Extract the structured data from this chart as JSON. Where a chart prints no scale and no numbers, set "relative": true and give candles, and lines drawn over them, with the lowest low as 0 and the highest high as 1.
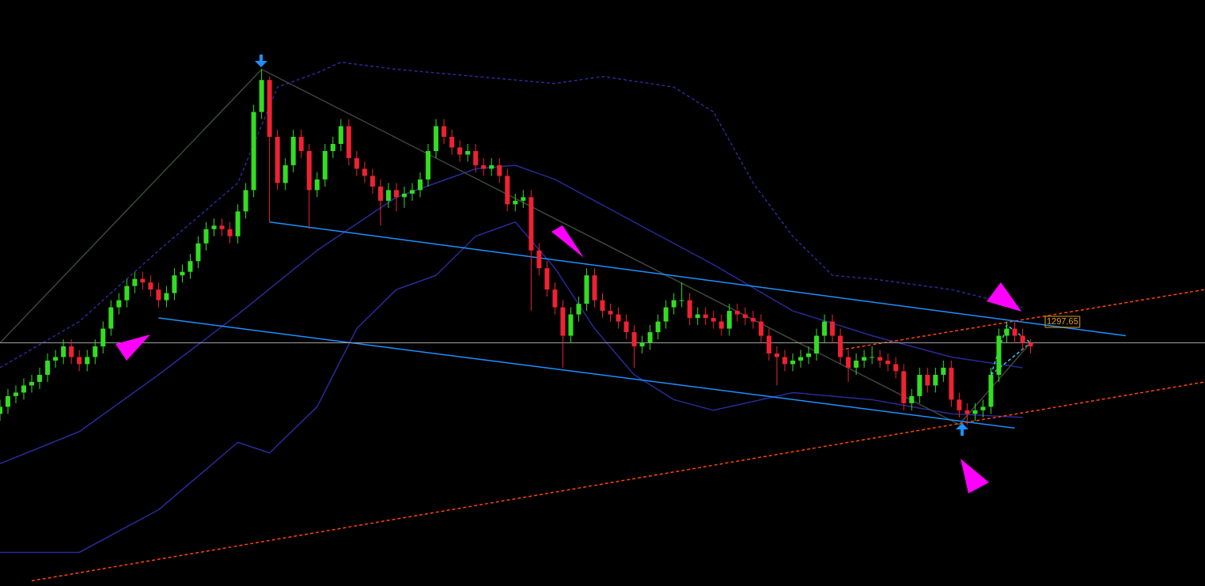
{
  "chart_data": {
    "type": "candlestick",
    "relative": true,
    "tick_labels": false,
    "legend": false,
    "categories": [
      null,
      null,
      null,
      null,
      null,
      null,
      null,
      null,
      null,
      null,
      null,
      null,
      null,
      null,
      null,
      null,
      null,
      null,
      null,
      null,
      null,
      null,
      null,
      null,
      null,
      null,
      null,
      null,
      null,
      null,
      null,
      null,
      null,
      null,
      null,
      null,
      null,
      null,
      null,
      null,
      null,
      null,
      null,
      null,
      null,
      null,
      null,
      null,
      null,
      null,
      null,
      null,
      null,
      null,
      null,
      null,
      null,
      null,
      null,
      null,
      null,
      null,
      null,
      null,
      null,
      null,
      null,
      null,
      null,
      null,
      null,
      null,
      null,
      null,
      null,
      null,
      null,
      null,
      null,
      null,
      null,
      null,
      null,
      null,
      null,
      null,
      null,
      null,
      null,
      null,
      null,
      null,
      null,
      null,
      null,
      null,
      null,
      null,
      null,
      null,
      null,
      null,
      null,
      null,
      null,
      null,
      null,
      null,
      null,
      null,
      null,
      null,
      null,
      null,
      null,
      null,
      null,
      null,
      null,
      null,
      null,
      null,
      null,
      null,
      null,
      null,
      null,
      null,
      null,
      null,
      null,
      null,
      null,
      null,
      null,
      null,
      null,
      null,
      null,
      null,
      null,
      null,
      null,
      null,
      null,
      null,
      null,
      null,
      null,
      null,
      null,
      null,
      null
    ],
    "ohlc": [
      [
        0.03,
        0.07,
        0.01,
        0.05
      ],
      [
        0.05,
        0.1,
        0.03,
        0.08
      ],
      [
        0.08,
        0.11,
        0.06,
        0.09
      ],
      [
        0.09,
        0.13,
        0.07,
        0.11
      ],
      [
        0.11,
        0.14,
        0.09,
        0.12
      ],
      [
        0.12,
        0.16,
        0.1,
        0.14
      ],
      [
        0.14,
        0.2,
        0.12,
        0.18
      ],
      [
        0.18,
        0.21,
        0.16,
        0.19
      ],
      [
        0.19,
        0.24,
        0.17,
        0.22
      ],
      [
        0.22,
        0.24,
        0.17,
        0.19
      ],
      [
        0.19,
        0.21,
        0.15,
        0.17
      ],
      [
        0.17,
        0.21,
        0.15,
        0.19
      ],
      [
        0.19,
        0.24,
        0.17,
        0.22
      ],
      [
        0.22,
        0.29,
        0.2,
        0.27
      ],
      [
        0.27,
        0.35,
        0.25,
        0.33
      ],
      [
        0.33,
        0.37,
        0.31,
        0.35
      ],
      [
        0.35,
        0.41,
        0.33,
        0.39
      ],
      [
        0.39,
        0.43,
        0.37,
        0.41
      ],
      [
        0.41,
        0.43,
        0.38,
        0.4
      ],
      [
        0.4,
        0.42,
        0.36,
        0.38
      ],
      [
        0.38,
        0.4,
        0.33,
        0.35
      ],
      [
        0.35,
        0.39,
        0.33,
        0.37
      ],
      [
        0.37,
        0.44,
        0.35,
        0.42
      ],
      [
        0.42,
        0.45,
        0.4,
        0.43
      ],
      [
        0.43,
        0.48,
        0.41,
        0.46
      ],
      [
        0.46,
        0.53,
        0.44,
        0.51
      ],
      [
        0.51,
        0.57,
        0.49,
        0.55
      ],
      [
        0.55,
        0.58,
        0.53,
        0.56
      ],
      [
        0.56,
        0.58,
        0.53,
        0.55
      ],
      [
        0.55,
        0.57,
        0.51,
        0.53
      ],
      [
        0.53,
        0.62,
        0.51,
        0.6
      ],
      [
        0.6,
        0.68,
        0.58,
        0.66
      ],
      [
        0.66,
        0.9,
        0.64,
        0.88
      ],
      [
        0.88,
        1.0,
        0.86,
        0.97
      ],
      [
        0.97,
        0.98,
        0.57,
        0.81
      ],
      [
        0.81,
        0.83,
        0.66,
        0.68
      ],
      [
        0.68,
        0.75,
        0.66,
        0.73
      ],
      [
        0.73,
        0.83,
        0.71,
        0.81
      ],
      [
        0.81,
        0.83,
        0.75,
        0.77
      ],
      [
        0.77,
        0.79,
        0.55,
        0.66
      ],
      [
        0.66,
        0.71,
        0.64,
        0.69
      ],
      [
        0.69,
        0.79,
        0.67,
        0.77
      ],
      [
        0.77,
        0.81,
        0.75,
        0.79
      ],
      [
        0.79,
        0.86,
        0.77,
        0.84
      ],
      [
        0.84,
        0.86,
        0.73,
        0.75
      ],
      [
        0.75,
        0.77,
        0.7,
        0.72
      ],
      [
        0.72,
        0.74,
        0.68,
        0.7
      ],
      [
        0.7,
        0.72,
        0.65,
        0.67
      ],
      [
        0.67,
        0.69,
        0.56,
        0.63
      ],
      [
        0.63,
        0.68,
        0.61,
        0.66
      ],
      [
        0.66,
        0.68,
        0.6,
        0.64
      ],
      [
        0.64,
        0.67,
        0.61,
        0.65
      ],
      [
        0.65,
        0.68,
        0.63,
        0.66
      ],
      [
        0.66,
        0.71,
        0.64,
        0.69
      ],
      [
        0.69,
        0.79,
        0.67,
        0.77
      ],
      [
        0.77,
        0.86,
        0.75,
        0.84
      ],
      [
        0.84,
        0.86,
        0.79,
        0.81
      ],
      [
        0.81,
        0.83,
        0.76,
        0.78
      ],
      [
        0.78,
        0.8,
        0.74,
        0.76
      ],
      [
        0.76,
        0.79,
        0.74,
        0.77
      ],
      [
        0.77,
        0.79,
        0.71,
        0.73
      ],
      [
        0.73,
        0.75,
        0.7,
        0.72
      ],
      [
        0.72,
        0.75,
        0.7,
        0.73
      ],
      [
        0.73,
        0.75,
        0.68,
        0.7
      ],
      [
        0.7,
        0.72,
        0.6,
        0.62
      ],
      [
        0.62,
        0.65,
        0.6,
        0.63
      ],
      [
        0.63,
        0.66,
        0.61,
        0.64
      ],
      [
        0.64,
        0.66,
        0.32,
        0.49
      ],
      [
        0.49,
        0.51,
        0.42,
        0.44
      ],
      [
        0.44,
        0.46,
        0.36,
        0.38
      ],
      [
        0.38,
        0.4,
        0.31,
        0.33
      ],
      [
        0.33,
        0.35,
        0.16,
        0.25
      ],
      [
        0.25,
        0.33,
        0.23,
        0.31
      ],
      [
        0.31,
        0.36,
        0.29,
        0.34
      ],
      [
        0.34,
        0.44,
        0.32,
        0.42
      ],
      [
        0.42,
        0.44,
        0.33,
        0.35
      ],
      [
        0.35,
        0.37,
        0.3,
        0.32
      ],
      [
        0.32,
        0.34,
        0.29,
        0.31
      ],
      [
        0.31,
        0.33,
        0.27,
        0.29
      ],
      [
        0.29,
        0.31,
        0.24,
        0.26
      ],
      [
        0.26,
        0.28,
        0.16,
        0.22
      ],
      [
        0.22,
        0.25,
        0.2,
        0.23
      ],
      [
        0.23,
        0.28,
        0.21,
        0.26
      ],
      [
        0.26,
        0.31,
        0.24,
        0.29
      ],
      [
        0.29,
        0.35,
        0.27,
        0.33
      ],
      [
        0.33,
        0.37,
        0.31,
        0.35
      ],
      [
        0.35,
        0.4,
        0.33,
        0.35
      ],
      [
        0.35,
        0.37,
        0.28,
        0.3
      ],
      [
        0.3,
        0.33,
        0.28,
        0.31
      ],
      [
        0.31,
        0.33,
        0.28,
        0.3
      ],
      [
        0.3,
        0.32,
        0.27,
        0.29
      ],
      [
        0.29,
        0.31,
        0.25,
        0.27
      ],
      [
        0.27,
        0.34,
        0.25,
        0.32
      ],
      [
        0.32,
        0.34,
        0.29,
        0.31
      ],
      [
        0.31,
        0.33,
        0.28,
        0.3
      ],
      [
        0.3,
        0.32,
        0.27,
        0.29
      ],
      [
        0.29,
        0.31,
        0.23,
        0.25
      ],
      [
        0.25,
        0.27,
        0.18,
        0.2
      ],
      [
        0.2,
        0.22,
        0.11,
        0.19
      ],
      [
        0.19,
        0.21,
        0.15,
        0.17
      ],
      [
        0.17,
        0.2,
        0.15,
        0.18
      ],
      [
        0.18,
        0.21,
        0.16,
        0.19
      ],
      [
        0.19,
        0.22,
        0.17,
        0.2
      ],
      [
        0.2,
        0.27,
        0.18,
        0.25
      ],
      [
        0.25,
        0.31,
        0.23,
        0.29
      ],
      [
        0.29,
        0.31,
        0.23,
        0.25
      ],
      [
        0.25,
        0.27,
        0.17,
        0.19
      ],
      [
        0.19,
        0.21,
        0.12,
        0.16
      ],
      [
        0.16,
        0.2,
        0.14,
        0.18
      ],
      [
        0.18,
        0.21,
        0.16,
        0.19
      ],
      [
        0.19,
        0.22,
        0.17,
        0.19
      ],
      [
        0.19,
        0.21,
        0.16,
        0.18
      ],
      [
        0.18,
        0.2,
        0.15,
        0.17
      ],
      [
        0.17,
        0.19,
        0.13,
        0.15
      ],
      [
        0.15,
        0.17,
        0.04,
        0.06
      ],
      [
        0.06,
        0.1,
        0.04,
        0.08
      ],
      [
        0.08,
        0.16,
        0.06,
        0.14
      ],
      [
        0.14,
        0.16,
        0.09,
        0.11
      ],
      [
        0.11,
        0.16,
        0.09,
        0.14
      ],
      [
        0.14,
        0.18,
        0.12,
        0.16
      ],
      [
        0.16,
        0.18,
        0.05,
        0.07
      ],
      [
        0.07,
        0.09,
        0.02,
        0.04
      ],
      [
        0.04,
        0.06,
        0.0,
        0.03
      ],
      [
        0.03,
        0.06,
        0.01,
        0.04
      ],
      [
        0.04,
        0.07,
        0.02,
        0.05
      ],
      [
        0.05,
        0.16,
        0.03,
        0.14
      ],
      [
        0.14,
        0.27,
        0.12,
        0.25
      ],
      [
        0.25,
        0.29,
        0.23,
        0.27
      ],
      [
        0.27,
        0.29,
        0.23,
        0.25
      ],
      [
        0.25,
        0.27,
        0.21,
        0.23
      ],
      [
        0.23,
        0.24,
        0.2,
        0.22
      ],
      null,
      null,
      null,
      null,
      null,
      null,
      null,
      null,
      null,
      null,
      null,
      null,
      null,
      null,
      null,
      null,
      null,
      null,
      null,
      null,
      null,
      null
    ],
    "colors": [
      "#33dd22",
      "#33dd22",
      "#33dd22",
      "#33dd22",
      "#33dd22",
      "#33dd22",
      "#33dd22",
      "#33dd22",
      "#33dd22",
      "#ee2233",
      "#ee2233",
      "#33dd22",
      "#33dd22",
      "#33dd22",
      "#33dd22",
      "#33dd22",
      "#33dd22",
      "#33dd22",
      "#ee2233",
      "#ee2233",
      "#ee2233",
      "#33dd22",
      "#33dd22",
      "#33dd22",
      "#33dd22",
      "#33dd22",
      "#33dd22",
      "#33dd22",
      "#ee2233",
      "#ee2233",
      "#33dd22",
      "#33dd22",
      "#33dd22",
      "#33dd22",
      "#ee2233",
      "#ee2233",
      "#33dd22",
      "#33dd22",
      "#ee2233",
      "#ee2233",
      "#33dd22",
      "#33dd22",
      "#33dd22",
      "#33dd22",
      "#ee2233",
      "#ee2233",
      "#ee2233",
      "#ee2233",
      "#ee2233",
      "#33dd22",
      "#ee2233",
      "#33dd22",
      "#33dd22",
      "#33dd22",
      "#33dd22",
      "#33dd22",
      "#ee2233",
      "#ee2233",
      "#ee2233",
      "#33dd22",
      "#ee2233",
      "#ee2233",
      "#33dd22",
      "#ee2233",
      "#ee2233",
      "#33dd22",
      "#33dd22",
      "#ee2233",
      "#ee2233",
      "#ee2233",
      "#ee2233",
      "#ee2233",
      "#33dd22",
      "#33dd22",
      "#33dd22",
      "#ee2233",
      "#ee2233",
      "#ee2233",
      "#ee2233",
      "#ee2233",
      "#ee2233",
      "#33dd22",
      "#33dd22",
      "#33dd22",
      "#33dd22",
      "#33dd22",
      "#33dd22",
      "#ee2233",
      "#33dd22",
      "#ee2233",
      "#ee2233",
      "#ee2233",
      "#33dd22",
      "#ee2233",
      "#ee2233",
      "#ee2233",
      "#ee2233",
      "#ee2233",
      "#ee2233",
      "#ee2233",
      "#33dd22",
      "#33dd22",
      "#33dd22",
      "#33dd22",
      "#33dd22",
      "#ee2233",
      "#ee2233",
      "#ee2233",
      "#33dd22",
      "#33dd22",
      "#33dd22",
      "#ee2233",
      "#ee2233",
      "#ee2233",
      "#ee2233",
      "#33dd22",
      "#33dd22",
      "#ee2233",
      "#33dd22",
      "#33dd22",
      "#ee2233",
      "#ee2233",
      "#ee2233",
      "#33dd22",
      "#33dd22",
      "#33dd22",
      "#33dd22",
      "#33dd22",
      "#ee2233",
      "#ee2233",
      "#ee2233",
      null,
      null,
      null,
      null,
      null,
      null,
      null,
      null,
      null,
      null,
      null,
      null,
      null,
      null,
      null,
      null,
      null,
      null,
      null,
      null,
      null,
      null
    ],
    "series": [
      {
        "type": "line",
        "color": "#1e90ff",
        "values": [
          null,
          null,
          null,
          null,
          null,
          null,
          null,
          null,
          null,
          null,
          null,
          null,
          null,
          null,
          null,
          null,
          null,
          null,
          null,
          null,
          null,
          null,
          null,
          null,
          null,
          null,
          null,
          null,
          null,
          null,
          null,
          null,
          null,
          null,
          0.57,
          null,
          null,
          null,
          null,
          null,
          null,
          null,
          null,
          null,
          null,
          null,
          null,
          null,
          null,
          null,
          null,
          null,
          null,
          null,
          null,
          null,
          null,
          null,
          null,
          null,
          null,
          null,
          null,
          null,
          null,
          null,
          null,
          null,
          null,
          null,
          null,
          null,
          null,
          null,
          null,
          null,
          null,
          null,
          null,
          null,
          null,
          null,
          null,
          null,
          null,
          null,
          null,
          null,
          null,
          null,
          null,
          null,
          null,
          null,
          null,
          null,
          null,
          null,
          null,
          null,
          null,
          null,
          null,
          null,
          null,
          null,
          null,
          null,
          null,
          null,
          null,
          null,
          null,
          null,
          null,
          null,
          null,
          null,
          null,
          null,
          null,
          null,
          null,
          null,
          null,
          null,
          null,
          null,
          null,
          null,
          null,
          null,
          null,
          null,
          null,
          null,
          null,
          null,
          null,
          null,
          null,
          null,
          0.25,
          null,
          null,
          null,
          null,
          null,
          null,
          null,
          null,
          null,
          null
        ]
      },
      {
        "type": "line",
        "color": "#1e90ff",
        "values": [
          null,
          null,
          null,
          null,
          null,
          null,
          null,
          null,
          null,
          null,
          null,
          null,
          null,
          null,
          null,
          null,
          null,
          null,
          null,
          null,
          0.3,
          null,
          null,
          null,
          null,
          null,
          null,
          null,
          null,
          null,
          null,
          null,
          null,
          null,
          null,
          null,
          null,
          null,
          null,
          null,
          null,
          null,
          null,
          null,
          null,
          null,
          null,
          null,
          null,
          null,
          null,
          null,
          null,
          null,
          null,
          null,
          null,
          null,
          null,
          null,
          null,
          null,
          null,
          null,
          null,
          null,
          null,
          null,
          null,
          null,
          null,
          null,
          null,
          null,
          null,
          null,
          null,
          null,
          null,
          null,
          null,
          null,
          null,
          null,
          null,
          null,
          null,
          null,
          null,
          null,
          null,
          null,
          null,
          null,
          null,
          null,
          null,
          null,
          null,
          null,
          null,
          null,
          null,
          null,
          null,
          null,
          null,
          null,
          null,
          null,
          null,
          null,
          null,
          null,
          null,
          null,
          null,
          null,
          null,
          null,
          null,
          null,
          null,
          null,
          null,
          null,
          null,
          null,
          -0.01,
          null,
          null,
          null,
          null,
          null,
          null,
          null,
          null,
          null,
          null,
          null,
          null,
          null,
          null,
          null,
          null,
          null,
          null,
          null,
          null,
          null,
          null,
          null,
          null
        ]
      },
      {
        "type": "line",
        "color": "#ff4500",
        "line_style": "dashed",
        "values": [
          null,
          null,
          null,
          null,
          -0.44,
          null,
          null,
          null,
          null,
          null,
          null,
          null,
          null,
          null,
          null,
          null,
          null,
          null,
          null,
          null,
          null,
          null,
          null,
          null,
          null,
          null,
          null,
          null,
          null,
          null,
          null,
          null,
          null,
          null,
          null,
          null,
          null,
          null,
          null,
          null,
          null,
          null,
          null,
          null,
          null,
          null,
          null,
          null,
          null,
          null,
          null,
          null,
          null,
          null,
          null,
          null,
          null,
          null,
          null,
          null,
          null,
          null,
          null,
          null,
          null,
          null,
          null,
          null,
          null,
          null,
          null,
          null,
          null,
          null,
          null,
          null,
          null,
          null,
          null,
          null,
          null,
          null,
          null,
          null,
          null,
          null,
          null,
          null,
          null,
          null,
          null,
          null,
          null,
          null,
          null,
          null,
          null,
          null,
          null,
          null,
          null,
          null,
          null,
          null,
          null,
          null,
          null,
          null,
          null,
          null,
          null,
          null,
          null,
          null,
          null,
          null,
          null,
          null,
          null,
          null,
          null,
          null,
          null,
          null,
          null,
          null,
          null,
          null,
          null,
          null,
          null,
          null,
          null,
          null,
          null,
          null,
          null,
          null,
          null,
          null,
          null,
          null,
          null,
          null,
          null,
          null,
          null,
          null,
          null,
          null,
          null,
          null,
          0.12
        ]
      },
      {
        "type": "line",
        "color": "#ff4500",
        "line_style": "dashed",
        "values": [
          null,
          null,
          null,
          null,
          null,
          null,
          null,
          null,
          null,
          null,
          null,
          null,
          null,
          null,
          null,
          null,
          null,
          null,
          null,
          null,
          null,
          null,
          null,
          null,
          null,
          null,
          null,
          null,
          null,
          null,
          null,
          null,
          null,
          null,
          null,
          null,
          null,
          null,
          null,
          null,
          null,
          null,
          null,
          null,
          null,
          null,
          null,
          null,
          null,
          null,
          null,
          null,
          null,
          null,
          null,
          null,
          null,
          null,
          null,
          null,
          null,
          null,
          null,
          null,
          null,
          null,
          null,
          null,
          null,
          null,
          null,
          null,
          null,
          null,
          null,
          null,
          null,
          null,
          null,
          null,
          null,
          null,
          null,
          null,
          null,
          null,
          null,
          null,
          null,
          null,
          null,
          null,
          null,
          null,
          null,
          null,
          null,
          null,
          null,
          null,
          null,
          null,
          null,
          null,
          null,
          null,
          0.21,
          null,
          null,
          null,
          null,
          null,
          null,
          null,
          null,
          null,
          null,
          null,
          null,
          null,
          null,
          null,
          null,
          null,
          null,
          null,
          null,
          null,
          null,
          null,
          null,
          null,
          null,
          null,
          null,
          null,
          null,
          null,
          null,
          null,
          null,
          null,
          null,
          null,
          null,
          null,
          null,
          null,
          null,
          null,
          null,
          null,
          0.38
        ]
      },
      {
        "type": "line",
        "color": "#3c4a3c",
        "values": [
          0.23,
          null,
          null,
          null,
          null,
          null,
          null,
          null,
          null,
          null,
          null,
          null,
          null,
          null,
          null,
          null,
          null,
          null,
          null,
          null,
          null,
          null,
          null,
          null,
          null,
          null,
          null,
          null,
          null,
          null,
          null,
          null,
          null,
          1.0,
          null,
          null,
          null,
          null,
          null,
          null,
          null,
          null,
          null,
          null,
          null,
          null,
          null,
          null,
          null,
          null,
          null,
          null,
          null,
          null,
          null,
          null,
          null,
          null,
          null,
          null,
          null,
          null,
          null,
          null,
          null,
          null,
          null,
          null,
          null,
          null,
          null,
          null,
          null,
          null,
          null,
          null,
          null,
          null,
          null,
          null,
          null,
          null,
          null,
          null,
          null,
          null,
          null,
          null,
          null,
          null,
          null,
          null,
          null,
          null,
          null,
          null,
          null,
          null,
          null,
          null,
          null,
          null,
          null,
          null,
          null,
          null,
          null,
          null,
          null,
          null,
          null,
          null,
          null,
          null,
          null,
          null,
          null,
          null,
          null,
          null,
          null,
          0.0,
          null,
          null,
          null,
          null,
          null,
          null,
          null,
          null,
          0.23,
          null,
          null,
          null,
          null,
          null,
          null,
          null,
          null,
          null,
          null,
          null,
          null,
          null,
          null,
          null,
          null,
          null,
          null,
          null,
          null,
          null,
          null
        ]
      },
      {
        "type": "line",
        "color": "#40c8e0",
        "line_style": "dashed",
        "values": [
          null,
          null,
          null,
          null,
          null,
          null,
          null,
          null,
          null,
          null,
          null,
          null,
          null,
          null,
          null,
          null,
          null,
          null,
          null,
          null,
          null,
          null,
          null,
          null,
          null,
          null,
          null,
          null,
          null,
          null,
          null,
          null,
          null,
          null,
          null,
          null,
          null,
          null,
          null,
          null,
          null,
          null,
          null,
          null,
          null,
          null,
          null,
          null,
          null,
          null,
          null,
          null,
          null,
          null,
          null,
          null,
          null,
          null,
          null,
          null,
          null,
          null,
          null,
          null,
          null,
          null,
          null,
          null,
          null,
          null,
          null,
          null,
          null,
          null,
          null,
          null,
          null,
          null,
          null,
          null,
          null,
          null,
          null,
          null,
          null,
          null,
          null,
          null,
          null,
          null,
          null,
          null,
          null,
          null,
          null,
          null,
          null,
          null,
          null,
          null,
          null,
          null,
          null,
          null,
          null,
          null,
          null,
          null,
          null,
          null,
          null,
          null,
          null,
          null,
          null,
          null,
          null,
          null,
          null,
          null,
          null,
          null,
          null,
          null,
          null,
          0.14,
          null,
          0.28,
          null,
          null,
          0.23,
          null,
          null,
          null,
          null,
          null,
          null,
          null,
          null,
          null,
          null,
          null,
          null,
          null,
          null,
          null,
          null,
          null,
          null,
          null,
          null,
          null,
          null
        ]
      },
      {
        "type": "line",
        "color": "#40c8e0",
        "line_style": "dashed",
        "values": [
          null,
          null,
          null,
          null,
          null,
          null,
          null,
          null,
          null,
          null,
          null,
          null,
          null,
          null,
          null,
          null,
          null,
          null,
          null,
          null,
          null,
          null,
          null,
          null,
          null,
          null,
          null,
          null,
          null,
          null,
          null,
          null,
          null,
          null,
          null,
          null,
          null,
          null,
          null,
          null,
          null,
          null,
          null,
          null,
          null,
          null,
          null,
          null,
          null,
          null,
          null,
          null,
          null,
          null,
          null,
          null,
          null,
          null,
          null,
          null,
          null,
          null,
          null,
          null,
          null,
          null,
          null,
          null,
          null,
          null,
          null,
          null,
          null,
          null,
          null,
          null,
          null,
          null,
          null,
          null,
          null,
          null,
          null,
          null,
          null,
          null,
          null,
          null,
          null,
          null,
          null,
          null,
          null,
          null,
          null,
          null,
          null,
          null,
          null,
          null,
          null,
          null,
          null,
          null,
          null,
          null,
          null,
          null,
          null,
          null,
          null,
          null,
          null,
          null,
          null,
          null,
          null,
          null,
          null,
          null,
          null,
          null,
          null,
          null,
          null,
          0.14,
          null,
          null,
          null,
          null,
          0.23,
          null,
          null,
          null,
          null,
          null,
          null,
          null,
          null,
          null,
          null,
          null,
          null,
          null,
          null,
          null,
          null,
          null,
          null,
          null,
          null,
          null,
          null
        ]
      },
      {
        "type": "line",
        "color": "#2a2a9a",
        "line_style": "dashed",
        "values": [
          0.16,
          null,
          null,
          null,
          null,
          null,
          null,
          null,
          null,
          null,
          0.29,
          null,
          null,
          null,
          null,
          null,
          null,
          null,
          null,
          null,
          0.49,
          null,
          null,
          null,
          null,
          null,
          null,
          null,
          null,
          null,
          0.68,
          null,
          null,
          null,
          null,
          0.95,
          null,
          null,
          null,
          null,
          0.99,
          null,
          null,
          1.02,
          null,
          null,
          null,
          null,
          null,
          null,
          1.0,
          null,
          null,
          null,
          null,
          null,
          null,
          null,
          null,
          null,
          0.98,
          null,
          null,
          null,
          null,
          null,
          null,
          null,
          null,
          null,
          0.96,
          null,
          null,
          null,
          null,
          null,
          0.98,
          null,
          null,
          null,
          null,
          null,
          null,
          null,
          null,
          0.95,
          null,
          null,
          null,
          null,
          0.88,
          null,
          null,
          null,
          null,
          0.68,
          null,
          null,
          null,
          null,
          0.53,
          null,
          null,
          null,
          null,
          0.42,
          null,
          null,
          null,
          null,
          0.41,
          null,
          null,
          null,
          null,
          null,
          null,
          null,
          null,
          null,
          0.38,
          null,
          null,
          null,
          null,
          null,
          null,
          null,
          null,
          0.33,
          null,
          null,
          null,
          null,
          null,
          null,
          null,
          null,
          null,
          null,
          null,
          null,
          null,
          null,
          null,
          null,
          null,
          null,
          null,
          null,
          null,
          null,
          null
        ]
      },
      {
        "type": "line",
        "color": "#2a2a9a",
        "values": [
          -0.11,
          null,
          null,
          null,
          null,
          null,
          null,
          null,
          null,
          null,
          -0.02,
          null,
          null,
          null,
          null,
          null,
          null,
          null,
          null,
          null,
          0.14,
          null,
          null,
          null,
          null,
          null,
          null,
          null,
          null,
          null,
          0.31,
          null,
          null,
          null,
          null,
          null,
          null,
          null,
          null,
          null,
          0.49,
          null,
          null,
          null,
          null,
          null,
          null,
          null,
          null,
          null,
          0.64,
          null,
          null,
          null,
          null,
          null,
          null,
          null,
          null,
          null,
          0.72,
          null,
          null,
          null,
          null,
          0.73,
          null,
          null,
          null,
          null,
          0.69,
          null,
          null,
          null,
          null,
          null,
          null,
          null,
          null,
          null,
          0.57,
          null,
          null,
          null,
          null,
          null,
          null,
          null,
          null,
          null,
          0.45,
          null,
          null,
          null,
          null,
          null,
          null,
          null,
          null,
          null,
          0.32,
          null,
          null,
          null,
          null,
          null,
          null,
          null,
          null,
          null,
          0.25,
          null,
          null,
          null,
          null,
          null,
          null,
          null,
          null,
          null,
          0.19,
          null,
          null,
          null,
          null,
          null,
          null,
          null,
          null,
          0.16,
          null,
          null,
          null,
          null,
          null,
          null,
          null,
          null,
          null,
          null,
          null,
          null,
          null,
          null,
          null,
          null,
          null,
          null,
          null,
          null,
          null,
          null,
          null
        ]
      },
      {
        "type": "line",
        "color": "#2a2a9a",
        "values": [
          -0.36,
          null,
          null,
          null,
          null,
          null,
          null,
          null,
          null,
          null,
          -0.36,
          null,
          null,
          null,
          null,
          null,
          null,
          null,
          null,
          null,
          -0.24,
          null,
          null,
          null,
          null,
          null,
          null,
          null,
          null,
          null,
          -0.05,
          null,
          null,
          null,
          -0.08,
          null,
          null,
          null,
          null,
          null,
          0.05,
          null,
          null,
          null,
          null,
          0.27,
          null,
          null,
          null,
          null,
          0.38,
          null,
          null,
          null,
          null,
          0.42,
          null,
          null,
          null,
          null,
          0.53,
          null,
          null,
          null,
          null,
          0.57,
          null,
          null,
          null,
          null,
          0.44,
          null,
          null,
          null,
          null,
          0.27,
          null,
          null,
          null,
          null,
          0.14,
          null,
          null,
          null,
          null,
          0.07,
          null,
          null,
          null,
          null,
          0.04,
          null,
          null,
          null,
          null,
          null,
          null,
          null,
          null,
          null,
          0.09,
          null,
          null,
          null,
          null,
          null,
          null,
          null,
          null,
          null,
          0.07,
          null,
          null,
          null,
          null,
          null,
          null,
          null,
          null,
          null,
          0.03,
          null,
          null,
          null,
          null,
          null,
          null,
          null,
          null,
          0.02,
          null,
          null,
          null,
          null,
          null,
          null,
          null,
          null,
          null,
          null,
          null,
          null,
          null,
          null,
          null,
          null,
          null,
          null,
          null,
          null,
          null,
          null,
          null
        ]
      }
    ],
    "ref_lines": [
      {
        "axis": "y",
        "value": 0.23,
        "color": "#a0a0a0"
      }
    ],
    "annotations": [
      "1297.65"
    ]
  }
}
